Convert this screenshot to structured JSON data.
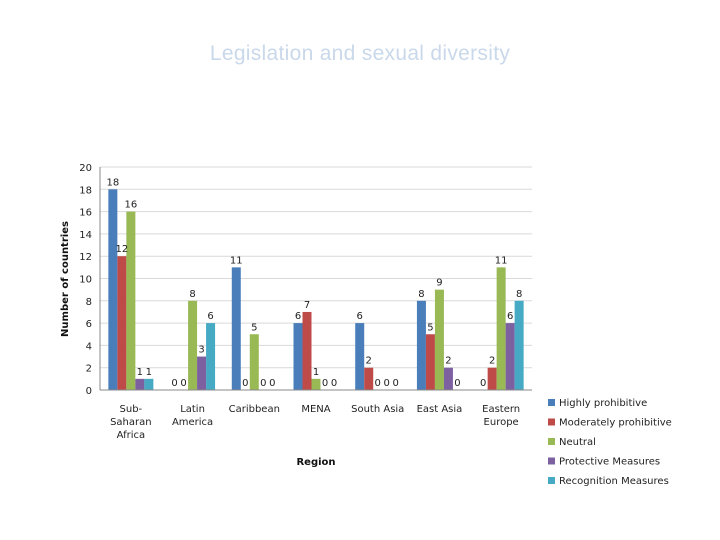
{
  "slide": {
    "title": "Legislation and sexual diversity"
  },
  "chart_data": {
    "type": "bar",
    "title": "",
    "xlabel": "Region",
    "ylabel": "Number of countries",
    "ylim": [
      0,
      20
    ],
    "yticks": [
      0,
      2,
      4,
      6,
      8,
      10,
      12,
      14,
      16,
      18,
      20
    ],
    "grid": true,
    "legend_position": "bottom-right",
    "categories": [
      [
        "Sub-",
        "Saharan",
        "Africa"
      ],
      [
        "Latin",
        "America"
      ],
      [
        "Caribbean"
      ],
      [
        "MENA"
      ],
      [
        "South Asia"
      ],
      [
        "East Asia"
      ],
      [
        "Eastern",
        "Europe"
      ]
    ],
    "series": [
      {
        "name": "Highly prohibitive",
        "color": "#4a7ebb",
        "values": [
          18,
          0,
          11,
          6,
          6,
          8,
          0
        ]
      },
      {
        "name": "Moderately prohibitive",
        "color": "#be4b48",
        "values": [
          12,
          0,
          0,
          7,
          2,
          5,
          2
        ]
      },
      {
        "name": "Neutral",
        "color": "#98b954",
        "values": [
          16,
          8,
          5,
          1,
          0,
          9,
          11
        ]
      },
      {
        "name": "Protective Measures",
        "color": "#7d60a0",
        "values": [
          1,
          3,
          0,
          0,
          0,
          2,
          6
        ]
      },
      {
        "name": "Recognition Measures",
        "color": "#46aac5",
        "values": [
          1,
          6,
          0,
          0,
          0,
          0,
          8
        ]
      }
    ]
  }
}
